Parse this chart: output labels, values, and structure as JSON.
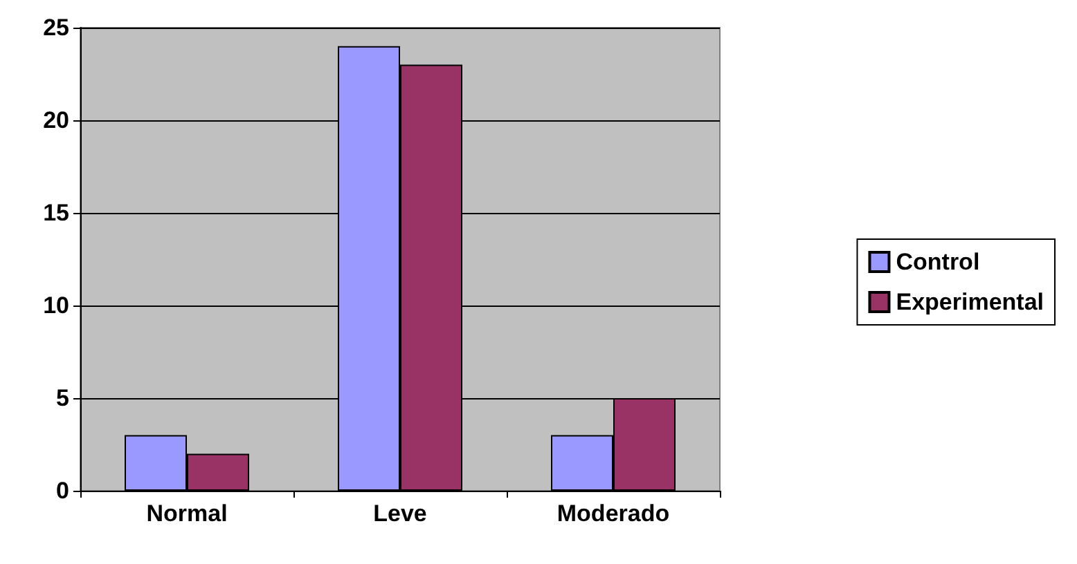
{
  "chart_data": {
    "type": "bar",
    "categories": [
      "Normal",
      "Leve",
      "Moderado"
    ],
    "series": [
      {
        "name": "Control",
        "color": "#9999ff",
        "values": [
          3,
          24,
          3
        ]
      },
      {
        "name": "Experimental",
        "color": "#993366",
        "values": [
          2,
          23,
          5
        ]
      }
    ],
    "ylim": [
      0,
      25
    ],
    "yticks": [
      0,
      5,
      10,
      15,
      20,
      25
    ],
    "grid": "y",
    "legend": "right"
  }
}
